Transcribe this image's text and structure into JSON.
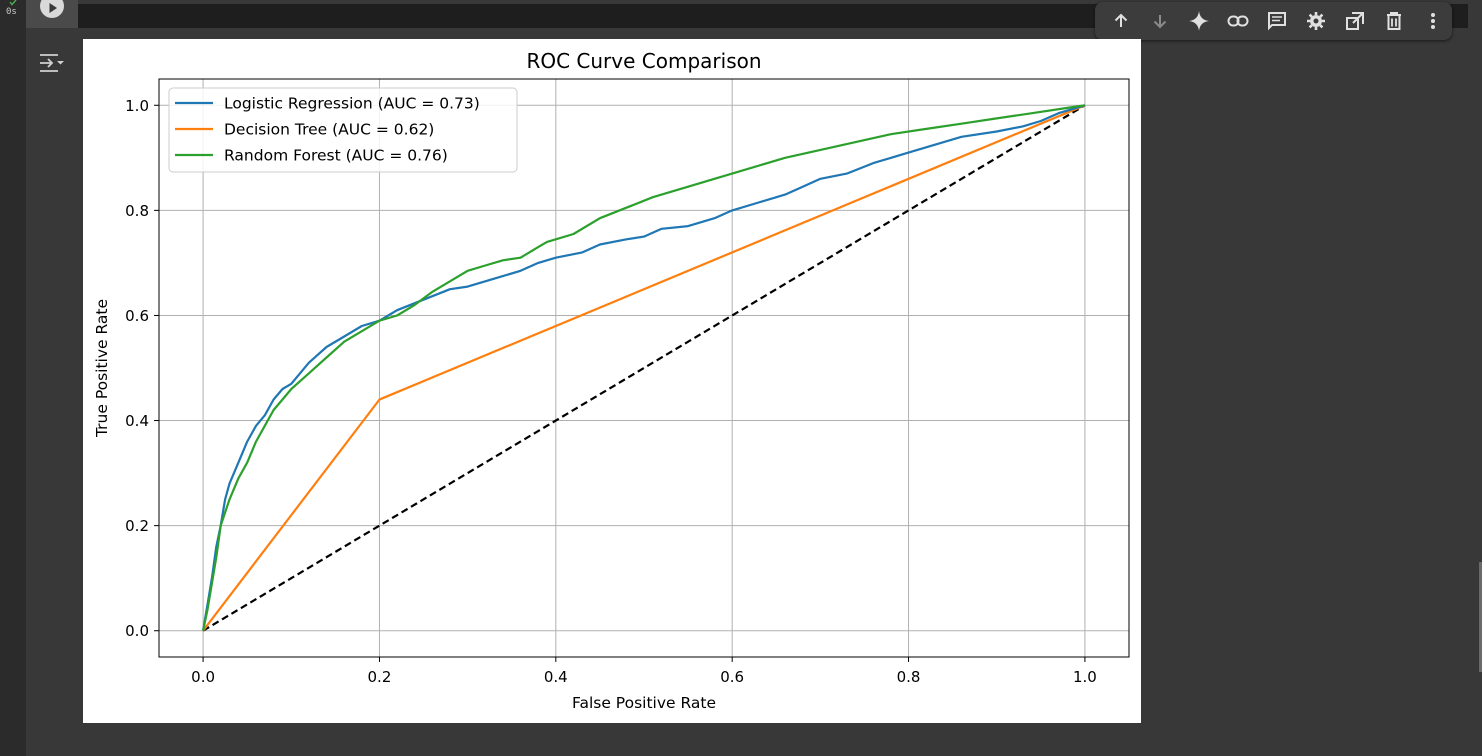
{
  "cell": {
    "exec_time": "0s",
    "run_icon": "play-icon",
    "output_icon": "output-toggle-icon"
  },
  "toolbar": {
    "icons": [
      "arrow-up-icon",
      "arrow-down-icon",
      "sparkle-icon",
      "link-icon",
      "comment-icon",
      "gear-icon",
      "open-tab-icon",
      "trash-icon",
      "more-vert-icon"
    ]
  },
  "colors": {
    "logistic": "#1f77b4",
    "tree": "#ff7f0e",
    "forest": "#2ca02c",
    "diagonal": "#000000"
  },
  "chart_data": {
    "type": "line",
    "title": "ROC Curve Comparison",
    "xlabel": "False Positive Rate",
    "ylabel": "True Positive Rate",
    "xlim": [
      -0.05,
      1.05
    ],
    "ylim": [
      -0.05,
      1.05
    ],
    "xticks": [
      "0.0",
      "0.2",
      "0.4",
      "0.6",
      "0.8",
      "1.0"
    ],
    "yticks": [
      "0.0",
      "0.2",
      "0.4",
      "0.6",
      "0.8",
      "1.0"
    ],
    "grid": true,
    "legend_position": "upper-left",
    "series": [
      {
        "name": "Logistic Regression (AUC = 0.73)",
        "color": "#1f77b4",
        "x": [
          0,
          0.005,
          0.01,
          0.015,
          0.02,
          0.025,
          0.03,
          0.04,
          0.05,
          0.06,
          0.07,
          0.08,
          0.09,
          0.1,
          0.12,
          0.14,
          0.16,
          0.18,
          0.2,
          0.22,
          0.25,
          0.28,
          0.3,
          0.33,
          0.36,
          0.38,
          0.4,
          0.43,
          0.45,
          0.48,
          0.5,
          0.52,
          0.55,
          0.58,
          0.6,
          0.63,
          0.66,
          0.68,
          0.7,
          0.73,
          0.76,
          0.8,
          0.83,
          0.86,
          0.9,
          0.93,
          0.95,
          0.97,
          0.99,
          1.0
        ],
        "y": [
          0,
          0.05,
          0.1,
          0.16,
          0.2,
          0.25,
          0.28,
          0.32,
          0.36,
          0.39,
          0.41,
          0.44,
          0.46,
          0.47,
          0.51,
          0.54,
          0.56,
          0.58,
          0.59,
          0.61,
          0.63,
          0.65,
          0.655,
          0.67,
          0.685,
          0.7,
          0.71,
          0.72,
          0.735,
          0.745,
          0.75,
          0.765,
          0.77,
          0.785,
          0.8,
          0.815,
          0.83,
          0.845,
          0.86,
          0.87,
          0.89,
          0.91,
          0.925,
          0.94,
          0.95,
          0.96,
          0.97,
          0.985,
          0.995,
          1.0
        ]
      },
      {
        "name": "Decision Tree (AUC = 0.62)",
        "color": "#ff7f0e",
        "x": [
          0,
          0.2,
          1.0
        ],
        "y": [
          0,
          0.44,
          1.0
        ]
      },
      {
        "name": "Random Forest (AUC = 0.76)",
        "color": "#2ca02c",
        "x": [
          0,
          0.005,
          0.01,
          0.015,
          0.02,
          0.03,
          0.04,
          0.05,
          0.06,
          0.07,
          0.08,
          0.09,
          0.1,
          0.12,
          0.14,
          0.16,
          0.18,
          0.2,
          0.22,
          0.24,
          0.26,
          0.28,
          0.3,
          0.32,
          0.34,
          0.36,
          0.38,
          0.39,
          0.4,
          0.42,
          0.45,
          0.48,
          0.51,
          0.54,
          0.58,
          0.62,
          0.66,
          0.7,
          0.74,
          0.78,
          0.82,
          0.86,
          0.9,
          0.94,
          0.98,
          1.0
        ],
        "y": [
          0,
          0.04,
          0.09,
          0.14,
          0.2,
          0.25,
          0.29,
          0.32,
          0.36,
          0.39,
          0.42,
          0.44,
          0.46,
          0.49,
          0.52,
          0.55,
          0.57,
          0.59,
          0.6,
          0.62,
          0.645,
          0.665,
          0.685,
          0.695,
          0.705,
          0.71,
          0.73,
          0.74,
          0.745,
          0.755,
          0.785,
          0.805,
          0.825,
          0.84,
          0.86,
          0.88,
          0.9,
          0.915,
          0.93,
          0.945,
          0.955,
          0.965,
          0.975,
          0.985,
          0.995,
          1.0
        ]
      },
      {
        "name": "",
        "color": "#000000",
        "dashed": true,
        "x": [
          0,
          1
        ],
        "y": [
          0,
          1
        ]
      }
    ]
  }
}
